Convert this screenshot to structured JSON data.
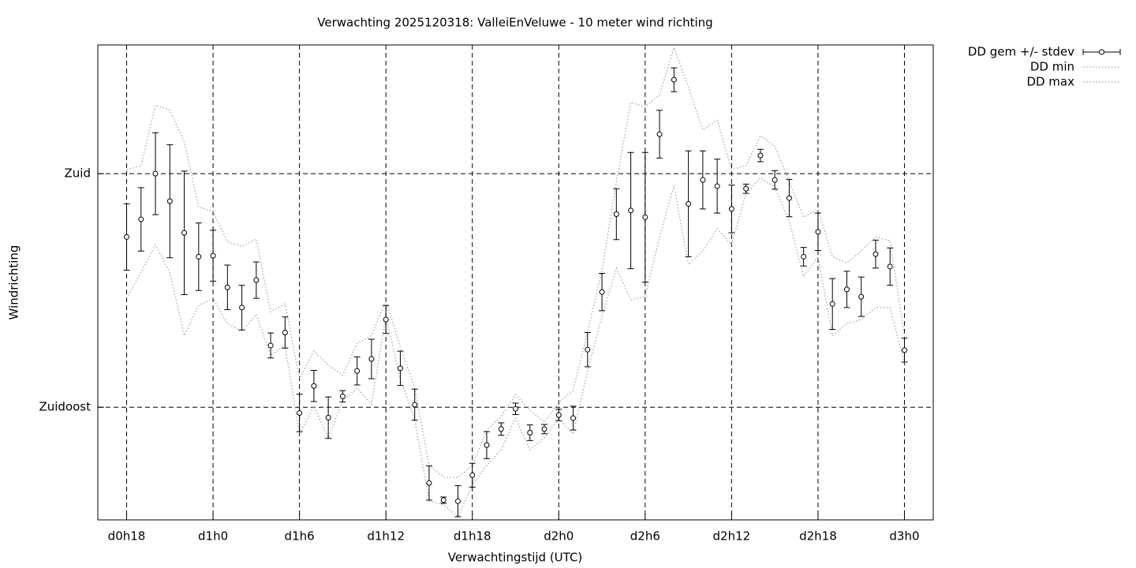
{
  "chart_data": {
    "type": "errorbar",
    "title": "Verwachting 2025120318: ValleiEnVeluwe - 10 meter wind richting",
    "xlabel": "Verwachtingstijd (UTC)",
    "ylabel": "Windrichting",
    "x": [
      18,
      19,
      20,
      21,
      22,
      23,
      24,
      25,
      26,
      27,
      28,
      29,
      30,
      31,
      32,
      33,
      34,
      35,
      36,
      37,
      38,
      39,
      40,
      41,
      42,
      43,
      44,
      45,
      46,
      47,
      48,
      49,
      50,
      51,
      52,
      53,
      54,
      55,
      56,
      57,
      58,
      59,
      60,
      61,
      62,
      63,
      64,
      65,
      66,
      67,
      68,
      69,
      70,
      71,
      72
    ],
    "xlim": [
      16,
      74
    ],
    "xticks": [
      {
        "value": 18,
        "label": "d0h18"
      },
      {
        "value": 24,
        "label": "d1h0"
      },
      {
        "value": 30,
        "label": "d1h6"
      },
      {
        "value": 36,
        "label": "d1h12"
      },
      {
        "value": 42,
        "label": "d1h18"
      },
      {
        "value": 48,
        "label": "d2h0"
      },
      {
        "value": 54,
        "label": "d2h6"
      },
      {
        "value": 60,
        "label": "d2h12"
      },
      {
        "value": 66,
        "label": "d2h18"
      },
      {
        "value": 72,
        "label": "d3h0"
      }
    ],
    "ylim": [
      113.3,
      204.8
    ],
    "yticks": [
      {
        "value": 135,
        "label": "Zuidoost"
      },
      {
        "value": 180,
        "label": "Zuid"
      }
    ],
    "grid": true,
    "legend": "outside-top-right",
    "series": [
      {
        "name": "DD gem +/- stdev",
        "style": "errorbar",
        "color": "#000000",
        "values": [
          167.8,
          171.2,
          180,
          174.7,
          168.6,
          164.0,
          164.2,
          158.1,
          154.2,
          159.5,
          146.9,
          149.4,
          133.9,
          139.1,
          133.0,
          137.1,
          142.0,
          144.3,
          151.9,
          142.5,
          135.5,
          120.4,
          117.1,
          116.9,
          121.9,
          127.7,
          130.8,
          134.7,
          130.1,
          130.8,
          133.5,
          132.9,
          146.1,
          157.2,
          172.2,
          172.9,
          171.6,
          187.6,
          198.1,
          174.2,
          178.8,
          177.6,
          173.2,
          177.1,
          183.5,
          178.8,
          175.3,
          164.0,
          168.8,
          154.9,
          157.7,
          156.3,
          164.5,
          162.1,
          146.0
        ],
        "errors": [
          6.4,
          6.1,
          7.9,
          10.9,
          11.9,
          6.5,
          4.9,
          4.3,
          4.3,
          3.5,
          2.4,
          3.0,
          3.6,
          3.0,
          4.0,
          1.1,
          2.7,
          3.8,
          2.7,
          3.3,
          3.0,
          3.3,
          0.6,
          3.0,
          2.3,
          2.6,
          1.2,
          1.1,
          1.5,
          0.9,
          1.1,
          2.3,
          3.3,
          3.6,
          4.9,
          11.2,
          12.5,
          4.6,
          2.3,
          10.2,
          5.6,
          5.2,
          4.6,
          0.9,
          1.2,
          1.8,
          3.6,
          1.8,
          3.6,
          4.9,
          3.5,
          3.8,
          2.7,
          3.6,
          2.3
        ]
      },
      {
        "name": "DD min",
        "style": "dotted",
        "color": "#a0a0a0",
        "values": [
          156.0,
          161.0,
          166.3,
          161.0,
          148.8,
          154.6,
          156.0,
          151.1,
          149.6,
          152.9,
          145.0,
          146.9,
          129.8,
          135.2,
          129.1,
          136.2,
          138.7,
          135.6,
          152.6,
          140.5,
          132.6,
          116.9,
          116.2,
          113.9,
          120.0,
          123.8,
          126.8,
          132.9,
          126.8,
          129.1,
          132.9,
          129.8,
          142.0,
          152.6,
          161.8,
          155.7,
          156.4,
          167.8,
          177.7,
          162.5,
          165.1,
          169.4,
          166.3,
          176.2,
          179.2,
          177.4,
          170.9,
          160.2,
          164.0,
          148.8,
          151.1,
          151.9,
          154.2,
          154.2,
          143.5
        ]
      },
      {
        "name": "DD max",
        "style": "dotted",
        "color": "#a0a0a0",
        "values": [
          180.8,
          181.5,
          193.2,
          192.2,
          186.1,
          173.6,
          172.7,
          166.9,
          166.0,
          167.4,
          153.4,
          154.9,
          140.5,
          145.8,
          143.1,
          141.2,
          147.3,
          148.8,
          155.7,
          146.6,
          138.7,
          123.8,
          121.5,
          121.5,
          123.8,
          130.6,
          133.2,
          137.4,
          134.4,
          132.1,
          135.9,
          138.2,
          149.6,
          161.3,
          178.5,
          193.7,
          192.9,
          195.2,
          204.3,
          196.7,
          188.4,
          190.3,
          180.8,
          181.5,
          187.3,
          185.3,
          178.5,
          171.6,
          173.2,
          164.0,
          162.8,
          165.1,
          167.8,
          167.1,
          148.8
        ]
      }
    ]
  }
}
